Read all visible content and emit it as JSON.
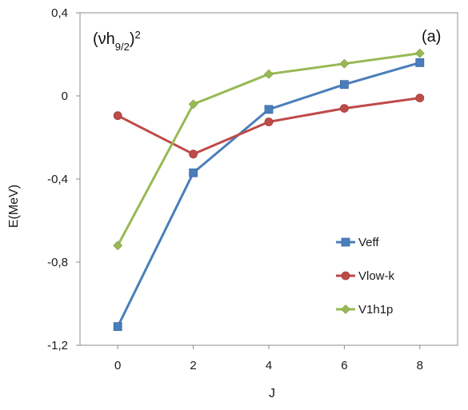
{
  "chart_data": {
    "type": "line",
    "title_base": "(νh",
    "title_sub": "9/2",
    "title_close": ")",
    "title_sup": "2",
    "panel_label": "(a)",
    "xlabel": "J",
    "ylabel": "E(MeV)",
    "x": [
      0,
      2,
      4,
      6,
      8
    ],
    "xlim": [
      -1,
      9
    ],
    "ylim": [
      -1.2,
      0.4
    ],
    "x_ticks": [
      "0",
      "2",
      "4",
      "6",
      "8"
    ],
    "y_ticks": [
      {
        "value": 0.4,
        "label": "0,4"
      },
      {
        "value": 0.0,
        "label": "0"
      },
      {
        "value": -0.4,
        "label": "-0,4"
      },
      {
        "value": -0.8,
        "label": "-0,8"
      },
      {
        "value": -1.2,
        "label": "-1,2"
      }
    ],
    "grid": false,
    "legend_position": "lower-right",
    "series": [
      {
        "name": "Veff",
        "color": "#4a7ebb",
        "marker": "square",
        "values": [
          -1.11,
          -0.37,
          -0.065,
          0.055,
          0.16
        ]
      },
      {
        "name": "Vlow-k",
        "color": "#be4b48",
        "marker": "circle",
        "values": [
          -0.095,
          -0.28,
          -0.125,
          -0.06,
          -0.01
        ]
      },
      {
        "name": "V1h1p",
        "color": "#98b954",
        "marker": "diamond",
        "values": [
          -0.72,
          -0.04,
          0.105,
          0.155,
          0.205
        ]
      }
    ]
  }
}
